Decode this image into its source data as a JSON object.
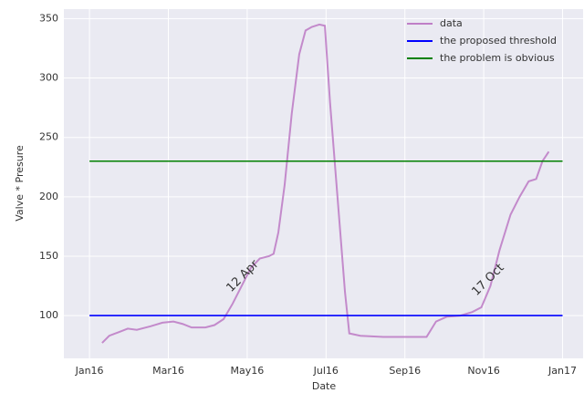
{
  "chart_data": {
    "type": "line",
    "x_label": "Date",
    "y_label": "Valve * Presure",
    "xlim": [
      -0.65,
      12.52
    ],
    "ylim": [
      64,
      358
    ],
    "xticks": [
      {
        "value": 0,
        "label": "Jan16"
      },
      {
        "value": 2,
        "label": "Mar16"
      },
      {
        "value": 4,
        "label": "May16"
      },
      {
        "value": 6,
        "label": "Jul16"
      },
      {
        "value": 8,
        "label": "Sep16"
      },
      {
        "value": 10,
        "label": "Nov16"
      },
      {
        "value": 12,
        "label": "Jan17"
      }
    ],
    "yticks": [
      100,
      150,
      200,
      250,
      300,
      350
    ],
    "grid": true,
    "legend": "upper right",
    "series": [
      {
        "name": "data",
        "color": "#bf7fc7",
        "x": [
          0.32,
          0.5,
          0.74,
          0.97,
          1.2,
          1.55,
          1.85,
          2.13,
          2.36,
          2.59,
          2.94,
          3.17,
          3.4,
          3.63,
          3.86,
          4.09,
          4.32,
          4.55,
          4.67,
          4.79,
          4.95,
          5.13,
          5.32,
          5.48,
          5.64,
          5.83,
          5.97,
          6.1,
          6.29,
          6.48,
          6.59,
          6.87,
          7.45,
          8.02,
          8.55,
          8.79,
          9.06,
          9.41,
          9.71,
          9.94,
          10.17,
          10.4,
          10.68,
          10.91,
          11.14,
          11.33,
          11.49,
          11.65
        ],
        "values": [
          77,
          83,
          86,
          89,
          88,
          91,
          94,
          95,
          93,
          90,
          90,
          92,
          97,
          110,
          125,
          140,
          148,
          150,
          152,
          170,
          210,
          270,
          320,
          340,
          343,
          345,
          344,
          280,
          200,
          120,
          85,
          83,
          82,
          82,
          82,
          95,
          99,
          100,
          103,
          107,
          125,
          155,
          185,
          200,
          213,
          215,
          230,
          238
        ]
      },
      {
        "name": "the proposed threshold",
        "color": "#0000ff",
        "x": [
          0,
          12
        ],
        "values": [
          100,
          100
        ]
      },
      {
        "name": "the problem is obvious",
        "color": "#008000",
        "x": [
          0,
          12
        ],
        "values": [
          230,
          230
        ]
      }
    ],
    "annotations": [
      "12 Apr",
      "17 Oct"
    ]
  }
}
